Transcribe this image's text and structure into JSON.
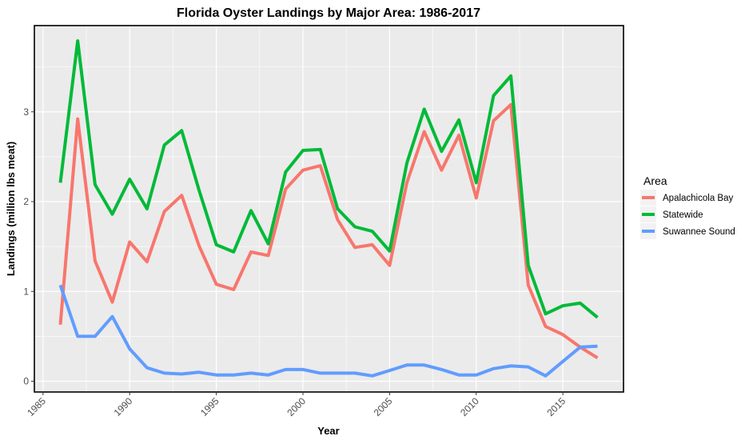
{
  "chart_data": {
    "type": "line",
    "title": "Florida Oyster Landings by Major Area: 1986-2017",
    "xlabel": "Year",
    "ylabel": "Landings (million lbs meat)",
    "xlim": [
      1984.5,
      2018.5
    ],
    "ylim": [
      -0.12,
      3.96
    ],
    "x_ticks": [
      1985,
      1990,
      1995,
      2000,
      2005,
      2010,
      2015
    ],
    "y_ticks": [
      0,
      1,
      2,
      3
    ],
    "grid": true,
    "legend": {
      "title": "Area",
      "placement": "right"
    },
    "x": [
      1986,
      1987,
      1988,
      1989,
      1990,
      1991,
      1992,
      1993,
      1994,
      1995,
      1996,
      1997,
      1998,
      1999,
      2000,
      2001,
      2002,
      2003,
      2004,
      2005,
      2006,
      2007,
      2008,
      2009,
      2010,
      2011,
      2012,
      2013,
      2014,
      2015,
      2016,
      2017
    ],
    "series": [
      {
        "name": "Apalachicola Bay",
        "color": "#F8766D",
        "values": [
          0.63,
          2.92,
          1.34,
          0.88,
          1.55,
          1.33,
          1.89,
          2.07,
          1.51,
          1.08,
          1.02,
          1.44,
          1.4,
          2.14,
          2.35,
          2.4,
          1.8,
          1.49,
          1.52,
          1.29,
          2.21,
          2.78,
          2.35,
          2.74,
          2.04,
          2.9,
          3.08,
          1.07,
          0.61,
          0.52,
          0.38,
          0.26
        ]
      },
      {
        "name": "Statewide",
        "color": "#00BA38",
        "values": [
          2.21,
          3.79,
          2.19,
          1.86,
          2.25,
          1.92,
          2.63,
          2.79,
          2.13,
          1.52,
          1.44,
          1.9,
          1.53,
          2.33,
          2.57,
          2.58,
          1.92,
          1.72,
          1.67,
          1.45,
          2.43,
          3.03,
          2.56,
          2.91,
          2.21,
          3.18,
          3.4,
          1.29,
          0.75,
          0.84,
          0.87,
          0.71
        ]
      },
      {
        "name": "Suwannee Sound",
        "color": "#619CFF",
        "values": [
          1.07,
          0.5,
          0.5,
          0.72,
          0.36,
          0.15,
          0.09,
          0.08,
          0.1,
          0.07,
          0.07,
          0.09,
          0.07,
          0.13,
          0.13,
          0.09,
          0.09,
          0.09,
          0.06,
          0.12,
          0.18,
          0.18,
          0.13,
          0.07,
          0.07,
          0.14,
          0.17,
          0.16,
          0.06,
          0.22,
          0.38,
          0.39
        ]
      }
    ]
  }
}
